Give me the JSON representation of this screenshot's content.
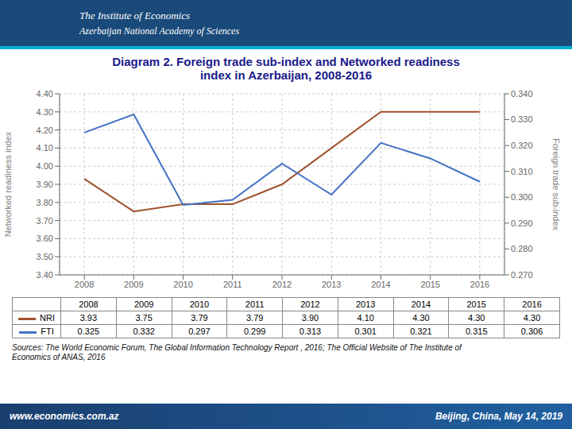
{
  "chart_data": {
    "type": "line",
    "title": "Diagram 2. Foreign trade sub-index and Networked readiness\nindex in Azerbaijan, 2008-2016",
    "x": [
      2008,
      2009,
      2010,
      2011,
      2012,
      2013,
      2014,
      2015,
      2016
    ],
    "xlim": [
      2007.5,
      2016.5
    ],
    "xticks": [
      2008,
      2009,
      2010,
      2011,
      2012,
      2013,
      2014,
      2015,
      2016
    ],
    "ylabel": "Networked readiness index",
    "y2label": "Foreign trade sub-index",
    "ylim": [
      3.4,
      4.4
    ],
    "yticks": [
      {
        "value": 3.4,
        "label": "3.40"
      },
      {
        "value": 3.5,
        "label": "3.50"
      },
      {
        "value": 3.6,
        "label": "3.60"
      },
      {
        "value": 3.7,
        "label": "3.70"
      },
      {
        "value": 3.8,
        "label": "3.80"
      },
      {
        "value": 3.9,
        "label": "3.90"
      },
      {
        "value": 4.0,
        "label": "4.00"
      },
      {
        "value": 4.1,
        "label": "4.10"
      },
      {
        "value": 4.2,
        "label": "4.20"
      },
      {
        "value": 4.3,
        "label": "4.30"
      },
      {
        "value": 4.4,
        "label": "4.40"
      }
    ],
    "y2lim": [
      0.27,
      0.34
    ],
    "y2ticks": [
      {
        "value": 0.27,
        "label": "0.270"
      },
      {
        "value": 0.28,
        "label": "0.280"
      },
      {
        "value": 0.29,
        "label": "0.290"
      },
      {
        "value": 0.3,
        "label": "0.300"
      },
      {
        "value": 0.31,
        "label": "0.310"
      },
      {
        "value": 0.32,
        "label": "0.320"
      },
      {
        "value": 0.33,
        "label": "0.330"
      },
      {
        "value": 0.34,
        "label": "0.340"
      }
    ],
    "grid": true,
    "marker": "none",
    "series": [
      {
        "name": "NRI",
        "color": "#a0522d",
        "values": [
          3.93,
          3.75,
          3.79,
          3.79,
          3.9,
          4.1,
          4.3,
          4.3,
          4.3
        ],
        "value_labels": [
          "3.93",
          "3.75",
          "3.79",
          "3.79",
          "3.90",
          "4.10",
          "4.30",
          "4.30",
          "4.30"
        ]
      },
      {
        "name": "FTI",
        "color": "#4472c4",
        "axis": "y2",
        "values": [
          0.325,
          0.332,
          0.297,
          0.299,
          0.313,
          0.301,
          0.321,
          0.315,
          0.306
        ],
        "value_labels": [
          "0.325",
          "0.332",
          "0.297",
          "0.299",
          "0.313",
          "0.301",
          "0.321",
          "0.315",
          "0.306"
        ]
      }
    ],
    "annotations": [
      "The Institute of Economics",
      "Azerbaijan National Academy of Sciences",
      "Sources: The World Economic Forum, The Global Information Technology Report , 2016; The Official Website of The Institute of\nEconomics of ANAS, 2016",
      "www.economics.com.az",
      "Beijing, China, May 14, 2019"
    ]
  }
}
